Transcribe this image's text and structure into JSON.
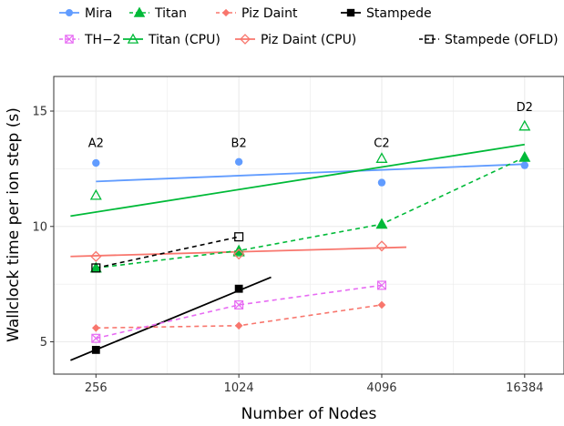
{
  "chart_data": {
    "type": "line",
    "xlabel": "Number of Nodes",
    "ylabel": "Wallclock time per ion step (s)",
    "x_scale": "log2",
    "x_ticks": [
      256,
      1024,
      4096,
      16384
    ],
    "x_tick_labels": [
      "256",
      "1024",
      "4096",
      "16384"
    ],
    "xlim": [
      170,
      24000
    ],
    "y_ticks": [
      5,
      10,
      15
    ],
    "y_tick_labels": [
      "5",
      "10",
      "15"
    ],
    "ylim": [
      3.6,
      16.5
    ],
    "grid": true,
    "legend_position": "top",
    "colors": {
      "mira": "#619CFF",
      "titan": "#00BA38",
      "piz": "#F8766D",
      "stampede": "#000000",
      "th2": "#E76BF3",
      "background": "#ffffff",
      "grid": "#ebebeb"
    },
    "series": [
      {
        "id": "mira",
        "name": "Mira",
        "color": "#619CFF",
        "marker": "circle",
        "line": "none",
        "x": [
          256,
          1024,
          4096,
          16384
        ],
        "y": [
          12.75,
          12.8,
          11.9,
          12.65
        ],
        "fit": {
          "x": [
            256,
            16384
          ],
          "y": [
            11.95,
            12.7
          ]
        }
      },
      {
        "id": "titan",
        "name": "Titan",
        "color": "#00BA38",
        "marker": "triangle-filled",
        "line": "dashed",
        "x": [
          256,
          1024,
          4096,
          16384
        ],
        "y": [
          8.2,
          8.95,
          10.1,
          13.0
        ]
      },
      {
        "id": "piz",
        "name": "Piz Daint",
        "color": "#F8766D",
        "marker": "diamond-filled",
        "line": "dashed",
        "x": [
          256,
          1024,
          4096
        ],
        "y": [
          5.6,
          5.7,
          6.6
        ]
      },
      {
        "id": "stampede",
        "name": "Stampede",
        "color": "#000000",
        "marker": "square-filled",
        "line": "none",
        "x": [
          256,
          1024
        ],
        "y": [
          4.65,
          7.3
        ],
        "fit": {
          "x": [
            200,
            1400
          ],
          "y": [
            4.2,
            7.8
          ]
        }
      },
      {
        "id": "th2",
        "name": "TH−2",
        "color": "#E76BF3",
        "marker": "square-x",
        "line": "dashed",
        "x": [
          256,
          1024,
          4096
        ],
        "y": [
          5.15,
          6.6,
          7.45
        ]
      },
      {
        "id": "titan_cpu",
        "name": "Titan (CPU)",
        "color": "#00BA38",
        "marker": "triangle-open",
        "line": "none",
        "x": [
          256,
          1024,
          4096,
          16384
        ],
        "y": [
          11.35,
          8.9,
          12.95,
          14.35
        ],
        "fit": {
          "x": [
            200,
            16384
          ],
          "y": [
            10.45,
            13.55
          ]
        }
      },
      {
        "id": "piz_cpu",
        "name": "Piz Daint (CPU)",
        "color": "#F8766D",
        "marker": "diamond-open",
        "line": "none",
        "x": [
          256,
          1024,
          4096
        ],
        "y": [
          8.7,
          8.8,
          9.15
        ],
        "fit": {
          "x": [
            200,
            5200
          ],
          "y": [
            8.7,
            9.1
          ]
        }
      },
      {
        "id": "stampede_ofld",
        "name": "Stampede (OFLD)",
        "color": "#000000",
        "marker": "square-open",
        "line": "dashed",
        "x": [
          256,
          1024
        ],
        "y": [
          8.2,
          9.55
        ]
      }
    ],
    "annotations": [
      {
        "text": "A2",
        "x": 256,
        "y": 13.45
      },
      {
        "text": "B2",
        "x": 1024,
        "y": 13.45
      },
      {
        "text": "C2",
        "x": 4096,
        "y": 13.45
      },
      {
        "text": "D2",
        "x": 16384,
        "y": 15.0
      }
    ],
    "legend": [
      {
        "series": "mira",
        "label": "Mira"
      },
      {
        "series": "titan",
        "label": "Titan"
      },
      {
        "series": "piz",
        "label": "Piz Daint"
      },
      {
        "series": "stampede",
        "label": "Stampede"
      },
      {
        "series": "th2",
        "label": "TH−2"
      },
      {
        "series": "titan_cpu",
        "label": "Titan (CPU)"
      },
      {
        "series": "piz_cpu",
        "label": "Piz Daint (CPU)"
      },
      {
        "series": "stampede_ofld",
        "label": "Stampede (OFLD)"
      }
    ]
  }
}
